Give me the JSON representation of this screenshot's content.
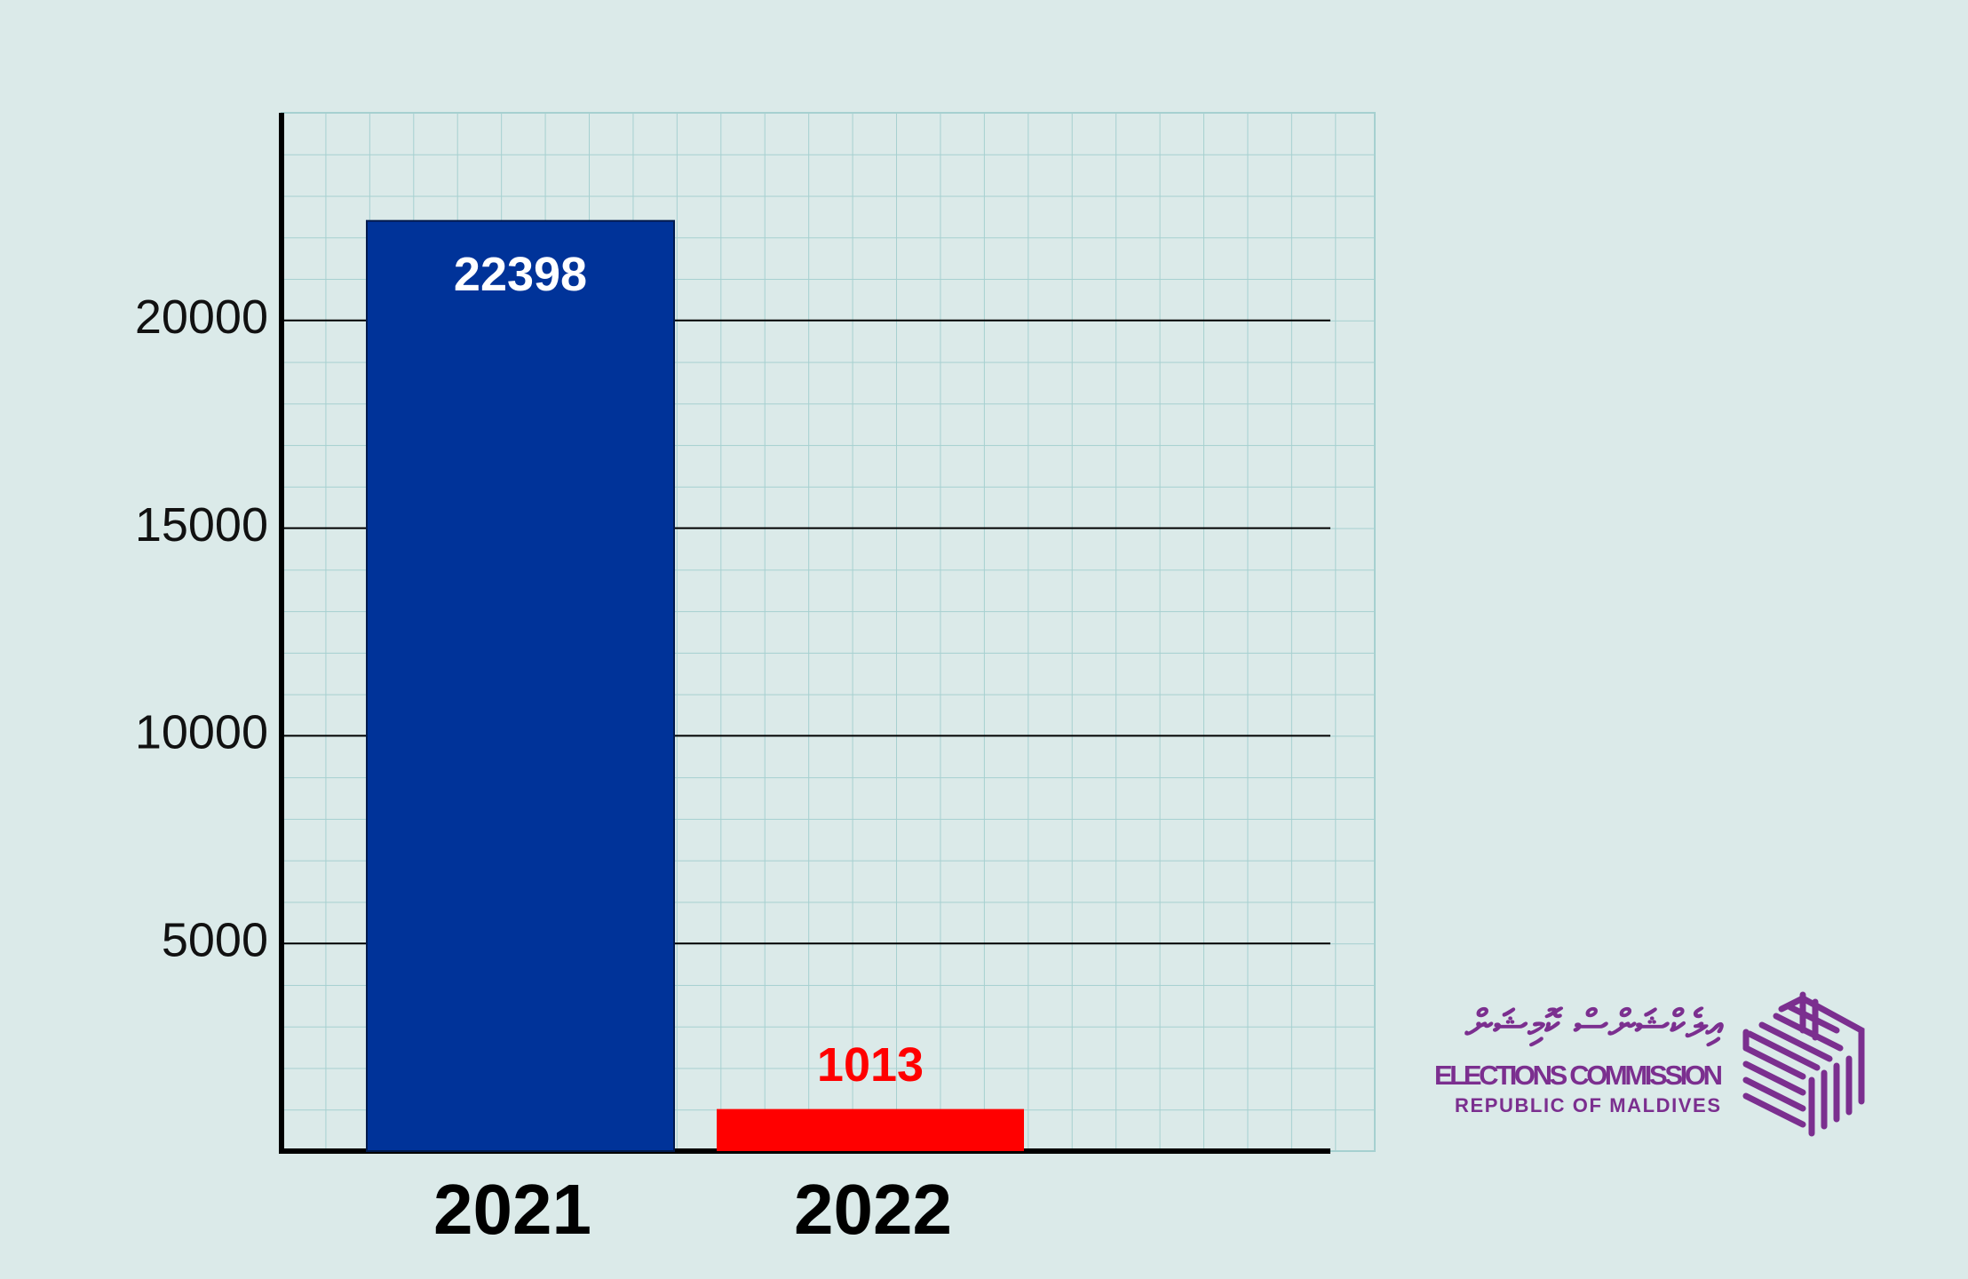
{
  "chart_data": {
    "type": "bar",
    "categories": [
      "2021",
      "2022"
    ],
    "values": [
      22398,
      1013
    ],
    "colors": [
      "#003399",
      "#ff0000"
    ],
    "ylim": [
      0,
      25000
    ],
    "yticks": [
      5000,
      10000,
      15000,
      20000
    ],
    "grid": true
  },
  "logo": {
    "native_name": "އިލެކްޝަންސް ކޮމިޝަން",
    "name": "ELECTIONS COMMISSION",
    "subtitle": "REPUBLIC OF MALDIVES"
  }
}
